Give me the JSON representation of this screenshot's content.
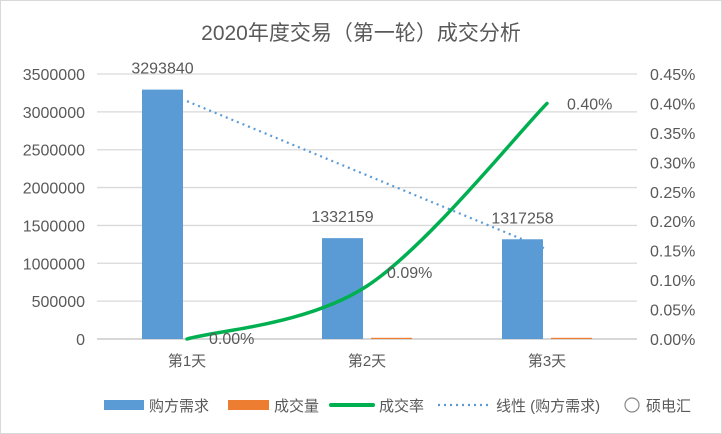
{
  "chart_data": {
    "type": "bar",
    "title": "2020年度交易（第一轮）成交分析",
    "categories": [
      "第1天",
      "第2天",
      "第3天"
    ],
    "series": [
      {
        "name": "购方需求",
        "type": "bar",
        "axis": "left",
        "color": "#5b9bd5",
        "values": [
          3293840,
          1332159,
          1317258
        ],
        "data_labels": [
          "3293840",
          "1332159",
          "1317258"
        ]
      },
      {
        "name": "成交量",
        "type": "bar",
        "axis": "left",
        "color": "#ed7d31",
        "values": [
          0,
          1200,
          5300
        ]
      },
      {
        "name": "成交率",
        "type": "line",
        "smooth": true,
        "axis": "right",
        "color": "#00b050",
        "values": [
          0.0,
          0.09,
          0.4
        ],
        "data_labels": [
          "0.00%",
          "0.09%",
          "0.40%"
        ]
      },
      {
        "name": "线性 (购方需求)",
        "type": "trendline",
        "axis": "left",
        "color": "#5b9bd5",
        "dash": "dotted",
        "values": [
          3141000,
          2162000,
          1183000
        ]
      }
    ],
    "y_left": {
      "min": 0,
      "max": 3500000,
      "ticks": [
        "0",
        "500000",
        "1000000",
        "1500000",
        "2000000",
        "2500000",
        "3000000",
        "3500000"
      ]
    },
    "y_right": {
      "min": 0,
      "max": 0.45,
      "ticks": [
        "0.00%",
        "0.05%",
        "0.10%",
        "0.15%",
        "0.20%",
        "0.25%",
        "0.30%",
        "0.35%",
        "0.40%",
        "0.45%"
      ]
    },
    "grid": true,
    "legend": "bottom",
    "legend_labels": [
      "购方需求",
      "成交量",
      "成交率",
      "线性 (购方需求)"
    ]
  },
  "watermark": {
    "text": "硕电汇"
  }
}
